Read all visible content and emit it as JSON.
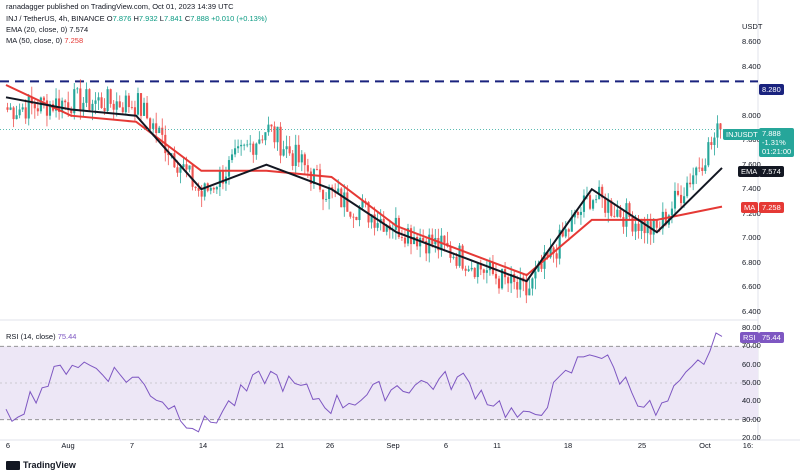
{
  "header": {
    "author": "ranadagger published on TradingView.com, Oct 01, 2023 14:39 UTC",
    "symbol": "INJ / TetherUS, 4h, BINANCE",
    "o_label": "O",
    "o": "7.876",
    "h_label": "H",
    "h": "7.932",
    "l_label": "L",
    "l": "7.841",
    "c_label": "C",
    "c": "7.888",
    "change": "+0.010 (+0.13%)",
    "ema_label": "EMA (20, close, 0)",
    "ema_value": "7.574",
    "ma_label": "MA (50, close, 0)",
    "ma_value": "7.258",
    "rsi_label": "RSI (14, close)",
    "rsi_value": "75.44"
  },
  "axis": {
    "currency": "USDT",
    "price_ticks": [
      "8.600",
      "8.400",
      "8.280",
      "8.000",
      "7.800",
      "7.600",
      "7.400",
      "7.200",
      "7.000",
      "6.800",
      "6.600",
      "6.400"
    ],
    "rsi_ticks": [
      "80.00",
      "70.00",
      "60.00",
      "50.00",
      "40.00",
      "30.00",
      "20.00"
    ],
    "x_ticks": [
      "6",
      "Aug",
      "7",
      "14",
      "21",
      "26",
      "Sep",
      "6",
      "11",
      "18",
      "25",
      "Oct",
      "16:"
    ]
  },
  "tags": {
    "resistance": "8.280",
    "price_symbol": "INJUSDT",
    "price": "7.888",
    "price_change": "-1.31%",
    "countdown": "01:21:00",
    "ema_tag": "EMA",
    "ema_price": "7.574",
    "ma_tag": "MA",
    "ma_price": "7.258",
    "rsi_tag": "RSI",
    "rsi_price": "75.44"
  },
  "footer": {
    "logo": "TradingView"
  },
  "colors": {
    "up": "#26a69a",
    "down": "#ef5350",
    "ema": "#131722",
    "ma": "#e53935",
    "rsi": "#7e57c2",
    "resistance": "#1a237e",
    "rsi_band": "#ede7f6"
  },
  "chart_data": {
    "type": "candlestick",
    "timeframe": "4h",
    "resistance_level": 8.28,
    "y_range": [
      6.35,
      8.78
    ],
    "x": [
      "6",
      "Aug",
      "7",
      "14",
      "21",
      "26",
      "Sep",
      "6",
      "11",
      "18",
      "25",
      "Oct"
    ],
    "close_approx": [
      8.05,
      8.12,
      8.1,
      7.35,
      7.9,
      7.35,
      7.1,
      6.85,
      6.55,
      7.35,
      7.05,
      7.888
    ],
    "ema20_approx": [
      8.15,
      8.05,
      8.0,
      7.4,
      7.6,
      7.4,
      7.05,
      6.85,
      6.65,
      7.4,
      7.05,
      7.574
    ],
    "ma50_approx": [
      8.25,
      8.0,
      7.95,
      7.55,
      7.55,
      7.5,
      7.1,
      6.9,
      6.7,
      7.15,
      7.15,
      7.258
    ],
    "rsi_approx": [
      30,
      62,
      52,
      25,
      55,
      38,
      48,
      52,
      28,
      70,
      32,
      75.44
    ],
    "rsi_range": [
      20,
      80
    ],
    "rsi_levels": [
      70,
      30
    ]
  }
}
